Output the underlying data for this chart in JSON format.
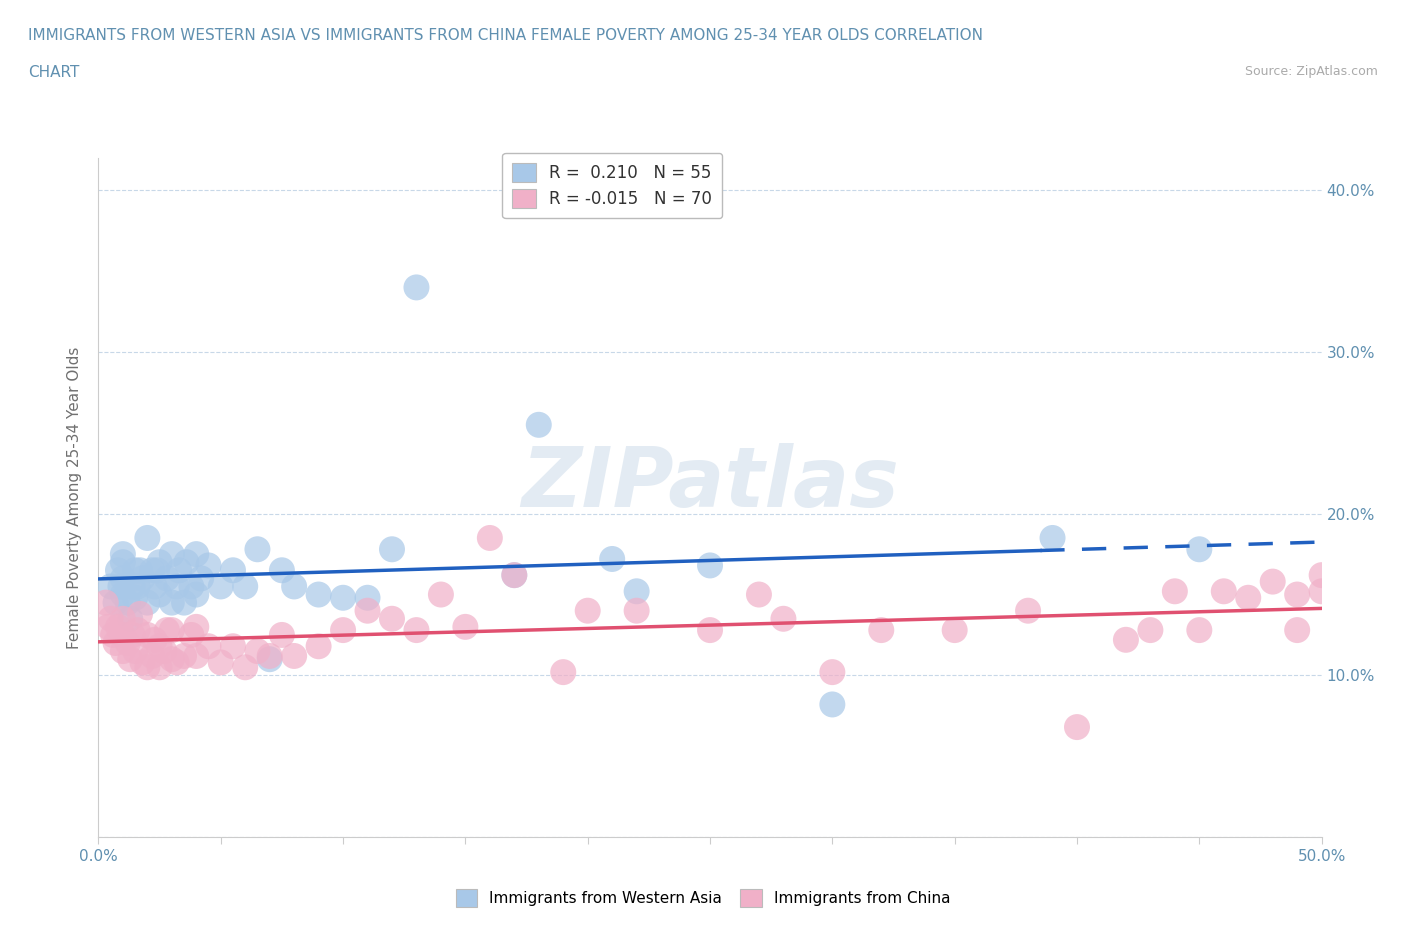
{
  "title_line1": "IMMIGRANTS FROM WESTERN ASIA VS IMMIGRANTS FROM CHINA FEMALE POVERTY AMONG 25-34 YEAR OLDS CORRELATION",
  "title_line2": "CHART",
  "source_text": "Source: ZipAtlas.com",
  "ylabel": "Female Poverty Among 25-34 Year Olds",
  "xlim": [
    0.0,
    0.5
  ],
  "ylim": [
    0.0,
    0.42
  ],
  "xticks": [
    0.0,
    0.05,
    0.1,
    0.15,
    0.2,
    0.25,
    0.3,
    0.35,
    0.4,
    0.45,
    0.5
  ],
  "xtick_labels": [
    "0.0%",
    "",
    "",
    "",
    "",
    "",
    "",
    "",
    "",
    "",
    "50.0%"
  ],
  "yticks": [
    0.0,
    0.1,
    0.2,
    0.3,
    0.4
  ],
  "ytick_labels": [
    "",
    "10.0%",
    "20.0%",
    "30.0%",
    "40.0%"
  ],
  "legend_r1": "R =  0.210   N = 55",
  "legend_r2": "R = -0.015   N = 70",
  "blue_color": "#a8c8e8",
  "pink_color": "#f0b0c8",
  "blue_line_color": "#2060c0",
  "pink_line_color": "#e05070",
  "grid_color": "#c8d8e8",
  "title_color": "#6090b0",
  "tick_color": "#6090b0",
  "ylabel_color": "#707070",
  "watermark_text": "ZIPatlas",
  "western_asia_x": [
    0.005,
    0.007,
    0.008,
    0.009,
    0.01,
    0.01,
    0.01,
    0.01,
    0.012,
    0.013,
    0.014,
    0.015,
    0.015,
    0.016,
    0.017,
    0.018,
    0.02,
    0.02,
    0.022,
    0.023,
    0.024,
    0.025,
    0.025,
    0.028,
    0.03,
    0.03,
    0.032,
    0.033,
    0.035,
    0.036,
    0.038,
    0.04,
    0.04,
    0.042,
    0.045,
    0.05,
    0.055,
    0.06,
    0.065,
    0.07,
    0.075,
    0.08,
    0.09,
    0.1,
    0.11,
    0.12,
    0.13,
    0.17,
    0.18,
    0.21,
    0.22,
    0.25,
    0.3,
    0.39,
    0.45
  ],
  "western_asia_y": [
    0.155,
    0.145,
    0.165,
    0.155,
    0.15,
    0.16,
    0.17,
    0.175,
    0.145,
    0.135,
    0.155,
    0.148,
    0.165,
    0.155,
    0.165,
    0.16,
    0.145,
    0.185,
    0.165,
    0.155,
    0.165,
    0.15,
    0.17,
    0.16,
    0.145,
    0.175,
    0.155,
    0.165,
    0.145,
    0.17,
    0.155,
    0.15,
    0.175,
    0.16,
    0.168,
    0.155,
    0.165,
    0.155,
    0.178,
    0.11,
    0.165,
    0.155,
    0.15,
    0.148,
    0.148,
    0.178,
    0.34,
    0.162,
    0.255,
    0.172,
    0.152,
    0.168,
    0.082,
    0.185,
    0.178
  ],
  "china_x": [
    0.003,
    0.004,
    0.005,
    0.006,
    0.007,
    0.008,
    0.01,
    0.01,
    0.01,
    0.012,
    0.013,
    0.014,
    0.015,
    0.016,
    0.017,
    0.018,
    0.02,
    0.02,
    0.022,
    0.023,
    0.025,
    0.025,
    0.027,
    0.028,
    0.03,
    0.03,
    0.032,
    0.035,
    0.038,
    0.04,
    0.04,
    0.045,
    0.05,
    0.055,
    0.06,
    0.065,
    0.07,
    0.075,
    0.08,
    0.09,
    0.1,
    0.11,
    0.12,
    0.13,
    0.14,
    0.15,
    0.16,
    0.17,
    0.19,
    0.2,
    0.22,
    0.25,
    0.27,
    0.28,
    0.3,
    0.32,
    0.35,
    0.38,
    0.4,
    0.42,
    0.43,
    0.44,
    0.45,
    0.46,
    0.47,
    0.48,
    0.49,
    0.49,
    0.5,
    0.5
  ],
  "china_y": [
    0.145,
    0.13,
    0.135,
    0.125,
    0.12,
    0.13,
    0.125,
    0.115,
    0.135,
    0.12,
    0.11,
    0.125,
    0.115,
    0.128,
    0.138,
    0.108,
    0.105,
    0.125,
    0.112,
    0.122,
    0.105,
    0.118,
    0.115,
    0.128,
    0.11,
    0.128,
    0.108,
    0.112,
    0.125,
    0.112,
    0.13,
    0.118,
    0.108,
    0.118,
    0.105,
    0.115,
    0.112,
    0.125,
    0.112,
    0.118,
    0.128,
    0.14,
    0.135,
    0.128,
    0.15,
    0.13,
    0.185,
    0.162,
    0.102,
    0.14,
    0.14,
    0.128,
    0.15,
    0.135,
    0.102,
    0.128,
    0.128,
    0.14,
    0.068,
    0.122,
    0.128,
    0.152,
    0.128,
    0.152,
    0.148,
    0.158,
    0.15,
    0.128,
    0.152,
    0.162
  ]
}
